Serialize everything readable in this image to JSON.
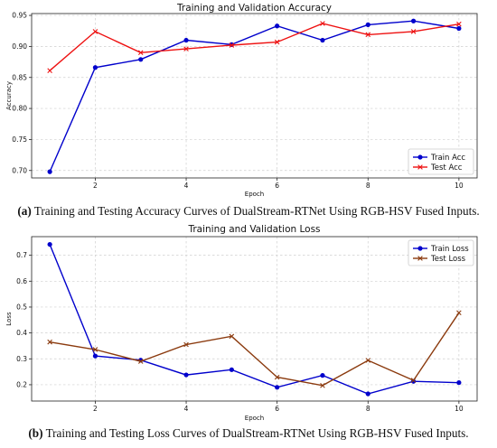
{
  "chart_data": [
    {
      "type": "line",
      "title": "Training and Validation Accuracy",
      "xlabel": "Epoch",
      "ylabel": "Accuracy",
      "x": [
        1,
        2,
        3,
        4,
        5,
        6,
        7,
        8,
        9,
        10
      ],
      "xticks": [
        "2",
        "4",
        "6",
        "8",
        "10"
      ],
      "yticks": [
        "0.70",
        "0.75",
        "0.80",
        "0.85",
        "0.90",
        "0.95"
      ],
      "xlim": [
        0.6,
        10.4
      ],
      "ylim": [
        0.688,
        0.953
      ],
      "grid": true,
      "legend_position": "bottom-right",
      "series": [
        {
          "name": "Train Acc",
          "color": "#0000cc",
          "marker": "circle",
          "values": [
            0.698,
            0.866,
            0.879,
            0.91,
            0.903,
            0.933,
            0.91,
            0.935,
            0.941,
            0.929
          ]
        },
        {
          "name": "Test Acc",
          "color": "#ee1111",
          "marker": "x",
          "values": [
            0.861,
            0.924,
            0.89,
            0.896,
            0.902,
            0.907,
            0.937,
            0.919,
            0.924,
            0.936
          ]
        }
      ]
    },
    {
      "type": "line",
      "title": "Training and Validation Loss",
      "xlabel": "Epoch",
      "ylabel": "Loss",
      "x": [
        1,
        2,
        3,
        4,
        5,
        6,
        7,
        8,
        9,
        10
      ],
      "xticks": [
        "2",
        "4",
        "6",
        "8",
        "10"
      ],
      "yticks": [
        "0.2",
        "0.3",
        "0.4",
        "0.5",
        "0.6",
        "0.7"
      ],
      "xlim": [
        0.6,
        10.4
      ],
      "ylim": [
        0.137,
        0.772
      ],
      "grid": true,
      "legend_position": "top-right",
      "series": [
        {
          "name": "Train Loss",
          "color": "#0000cc",
          "marker": "circle",
          "values": [
            0.742,
            0.311,
            0.295,
            0.238,
            0.258,
            0.19,
            0.236,
            0.165,
            0.213,
            0.208
          ]
        },
        {
          "name": "Test Loss",
          "color": "#8b3a0e",
          "marker": "x",
          "values": [
            0.365,
            0.336,
            0.29,
            0.355,
            0.387,
            0.229,
            0.197,
            0.294,
            0.217,
            0.478
          ]
        }
      ]
    }
  ],
  "captions": [
    {
      "label": "(a)",
      "text": " Training and Testing Accuracy Curves of DualStream-RTNet Using RGB-HSV Fused Inputs."
    },
    {
      "label": "(b)",
      "text": " Training and Testing Loss Curves of DualStream-RTNet Using RGB-HSV Fused Inputs."
    }
  ]
}
